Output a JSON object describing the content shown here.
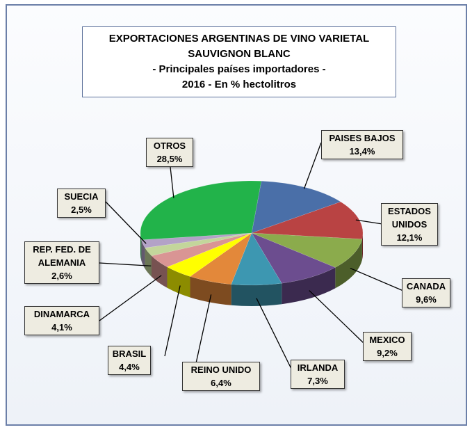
{
  "chart_data": {
    "type": "pie",
    "title": [
      "EXPORTACIONES ARGENTINAS DE VINO VARIETAL",
      "SAUVIGNON BLANC",
      "- Principales países importadores -",
      "2016 - En % hectolitros"
    ],
    "categories": [
      "PAISES BAJOS",
      "ESTADOS UNIDOS",
      "CANADA",
      "MEXICO",
      "IRLANDA",
      "REINO UNIDO",
      "BRASIL",
      "DINAMARCA",
      "REP. FED. DE ALEMANIA",
      "SUECIA",
      "OTROS"
    ],
    "values": [
      13.4,
      12.1,
      9.6,
      9.2,
      7.3,
      6.4,
      4.4,
      4.1,
      2.6,
      2.5,
      28.5
    ],
    "value_labels": [
      "13,4%",
      "12,1%",
      "9,6%",
      "9,2%",
      "7,3%",
      "6,4%",
      "4,4%",
      "4,1%",
      "2,6%",
      "2,5%",
      "28,5%"
    ],
    "colors": [
      "#4a6fa8",
      "#b94343",
      "#8bab4c",
      "#6c4d8f",
      "#3d97b1",
      "#e3883a",
      "#ffff00",
      "#d99594",
      "#c3d69b",
      "#b3a2c7",
      "#22b34a"
    ]
  }
}
